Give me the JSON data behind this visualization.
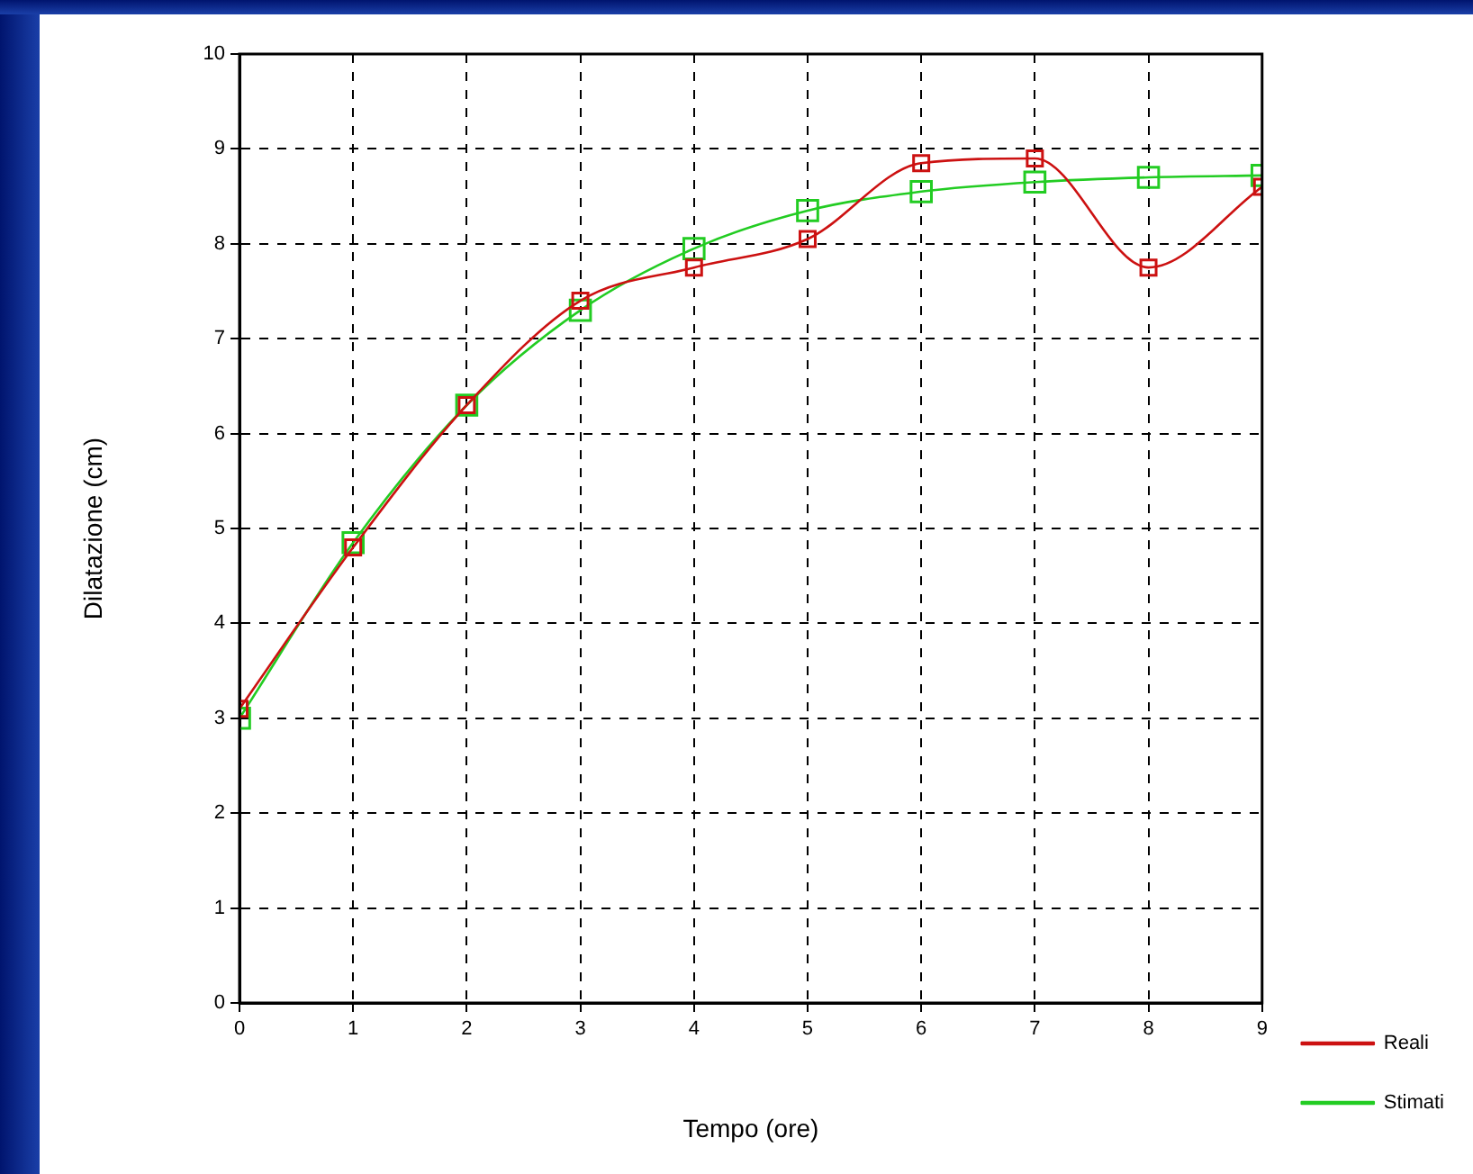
{
  "chart_data": {
    "type": "line",
    "xlabel": "Tempo (ore)",
    "ylabel": "Dilatazione (cm)",
    "x": [
      0,
      1,
      2,
      3,
      4,
      5,
      6,
      7,
      8,
      9
    ],
    "series": [
      {
        "name": "Reali",
        "color": "#cc1111",
        "values": [
          3.1,
          4.8,
          6.3,
          7.4,
          7.75,
          8.05,
          8.85,
          8.9,
          7.75,
          8.6
        ]
      },
      {
        "name": "Stimati",
        "color": "#22cc22",
        "values": [
          3.0,
          4.85,
          6.3,
          7.3,
          7.95,
          8.35,
          8.55,
          8.65,
          8.7,
          8.72
        ]
      }
    ],
    "xlim": [
      0,
      9
    ],
    "xticks": [
      0,
      1,
      2,
      3,
      4,
      5,
      6,
      7,
      8,
      9
    ],
    "ylim": [
      0,
      10
    ],
    "yticks": [
      0,
      1,
      2,
      3,
      4,
      5,
      6,
      7,
      8,
      9,
      10
    ],
    "grid": true,
    "legend": "bottom right",
    "marker": "square",
    "line_style": "solid"
  }
}
